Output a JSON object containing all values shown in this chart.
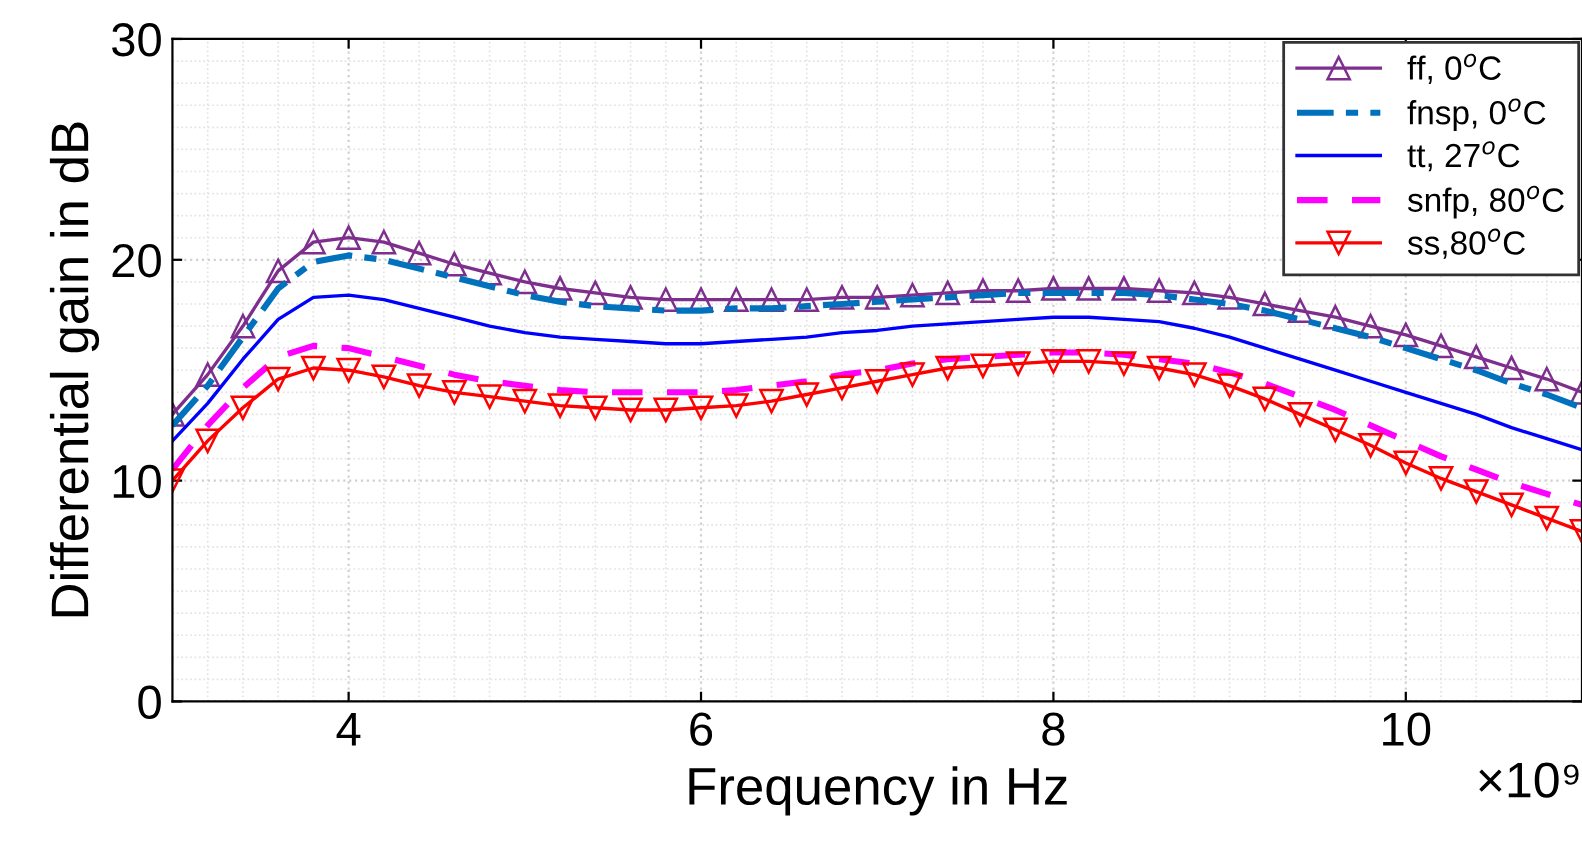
{
  "chart_data": {
    "type": "line",
    "xlabel": "Frequency in Hz",
    "ylabel": "Differential gain in dB",
    "x": [
      3.0,
      3.2,
      3.4,
      3.6,
      3.8,
      4.0,
      4.2,
      4.4,
      4.6,
      4.8,
      5.0,
      5.2,
      5.4,
      5.6,
      5.8,
      6.0,
      6.2,
      6.4,
      6.6,
      6.8,
      7.0,
      7.2,
      7.4,
      7.6,
      7.8,
      8.0,
      8.2,
      8.4,
      8.6,
      8.8,
      9.0,
      9.2,
      9.4,
      9.6,
      9.8,
      10.0,
      10.2,
      10.4,
      10.6,
      10.8,
      11.0
    ],
    "series": [
      {
        "name": "ff, 0$^{o}$C",
        "color": "#7e2f8e",
        "marker": "triangle",
        "line_style": "solid",
        "values": [
          13,
          14.8,
          17,
          19.5,
          20.8,
          21.0,
          20.8,
          20.3,
          19.8,
          19.4,
          19.0,
          18.7,
          18.5,
          18.3,
          18.2,
          18.2,
          18.2,
          18.2,
          18.2,
          18.3,
          18.3,
          18.4,
          18.5,
          18.6,
          18.6,
          18.7,
          18.7,
          18.7,
          18.6,
          18.5,
          18.3,
          18.0,
          17.7,
          17.4,
          17.0,
          16.6,
          16.1,
          15.6,
          15.1,
          14.6,
          14.0
        ]
      },
      {
        "name": "fnsp, 0$^{o}$C",
        "color": "#0072bd",
        "marker": "none",
        "line_style": "dashdot",
        "values": [
          12.5,
          14.3,
          16.5,
          18.7,
          19.9,
          20.2,
          20.0,
          19.6,
          19.2,
          18.8,
          18.4,
          18.1,
          17.9,
          17.8,
          17.7,
          17.7,
          17.8,
          17.8,
          17.9,
          18.0,
          18.1,
          18.2,
          18.3,
          18.4,
          18.5,
          18.5,
          18.5,
          18.5,
          18.4,
          18.2,
          18.0,
          17.7,
          17.3,
          16.9,
          16.5,
          16.0,
          15.5,
          15.0,
          14.4,
          13.9,
          13.3
        ]
      },
      {
        "name": "tt, 27$^{o}$C",
        "color": "#0000ff",
        "marker": "none",
        "line_style": "solid",
        "values": [
          11.8,
          13.5,
          15.5,
          17.3,
          18.3,
          18.4,
          18.2,
          17.8,
          17.4,
          17.0,
          16.7,
          16.5,
          16.4,
          16.3,
          16.2,
          16.2,
          16.3,
          16.4,
          16.5,
          16.7,
          16.8,
          17.0,
          17.1,
          17.2,
          17.3,
          17.4,
          17.4,
          17.3,
          17.2,
          16.9,
          16.5,
          16.0,
          15.5,
          15.0,
          14.5,
          14.0,
          13.5,
          13.0,
          12.4,
          11.9,
          11.4
        ]
      },
      {
        "name": "snfp, 80$^{o}$C",
        "color": "#ff00ff",
        "marker": "none",
        "line_style": "dashed",
        "values": [
          10.5,
          12.5,
          14.2,
          15.6,
          16.1,
          16.0,
          15.6,
          15.2,
          14.8,
          14.5,
          14.3,
          14.1,
          14.0,
          14.0,
          14.0,
          14.0,
          14.1,
          14.3,
          14.5,
          14.8,
          15.0,
          15.3,
          15.5,
          15.6,
          15.7,
          15.8,
          15.8,
          15.7,
          15.5,
          15.3,
          14.9,
          14.4,
          13.8,
          13.2,
          12.5,
          11.8,
          11.1,
          10.5,
          9.9,
          9.4,
          8.9
        ]
      },
      {
        "name": "ss,80$^{o}$C",
        "color": "#ff0000",
        "marker": "triangle_down",
        "line_style": "solid",
        "values": [
          10.0,
          11.8,
          13.3,
          14.6,
          15.1,
          15.0,
          14.7,
          14.3,
          14.0,
          13.8,
          13.6,
          13.4,
          13.3,
          13.2,
          13.2,
          13.3,
          13.4,
          13.6,
          13.9,
          14.2,
          14.5,
          14.8,
          15.1,
          15.2,
          15.3,
          15.4,
          15.4,
          15.3,
          15.1,
          14.8,
          14.3,
          13.7,
          13.0,
          12.3,
          11.6,
          10.8,
          10.1,
          9.5,
          8.9,
          8.3,
          7.7
        ]
      }
    ],
    "xlim": [
      3,
      11
    ],
    "xticks": [
      4,
      6,
      8,
      10
    ],
    "ylim": [
      0,
      30
    ],
    "yticks": [
      0,
      10,
      20,
      30
    ],
    "annotations": [
      "×10⁹"
    ],
    "grid": true,
    "legend": "top right"
  }
}
